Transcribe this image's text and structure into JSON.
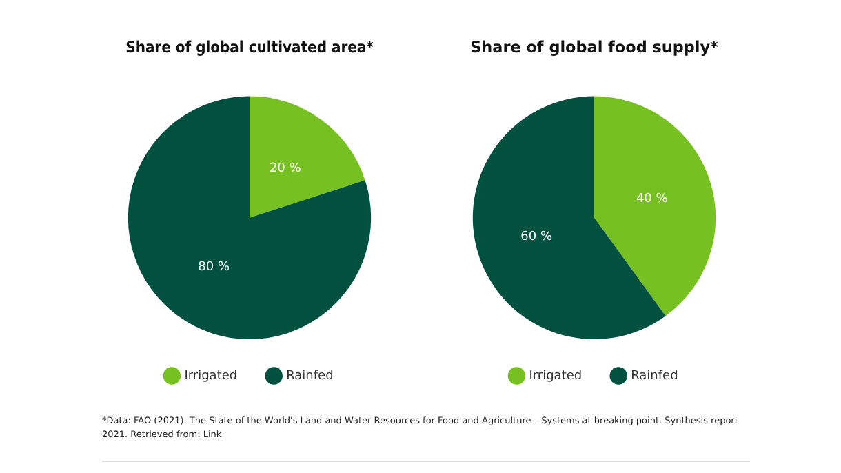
{
  "chart_data": [
    {
      "type": "pie",
      "title": "Share of global cultivated area*",
      "categories": [
        "Irrigated",
        "Rainfed"
      ],
      "values": [
        20,
        80
      ],
      "colors": [
        "#76c121",
        "#02503f"
      ],
      "value_labels": [
        "20 %",
        "80 %"
      ],
      "legend": "bottom"
    },
    {
      "type": "pie",
      "title": "Share of global food supply*",
      "categories": [
        "Irrigated",
        "Rainfed"
      ],
      "values": [
        40,
        60
      ],
      "colors": [
        "#76c121",
        "#02503f"
      ],
      "value_labels": [
        "40 %",
        "60 %"
      ],
      "legend": "bottom",
      "annotations": [
        "*Data: FAO (2021). The State of the World's Land and Water Resources for Food and Agriculture – Systems at breaking point. Synthesis report 2021. Retrieved from: Link"
      ]
    }
  ]
}
